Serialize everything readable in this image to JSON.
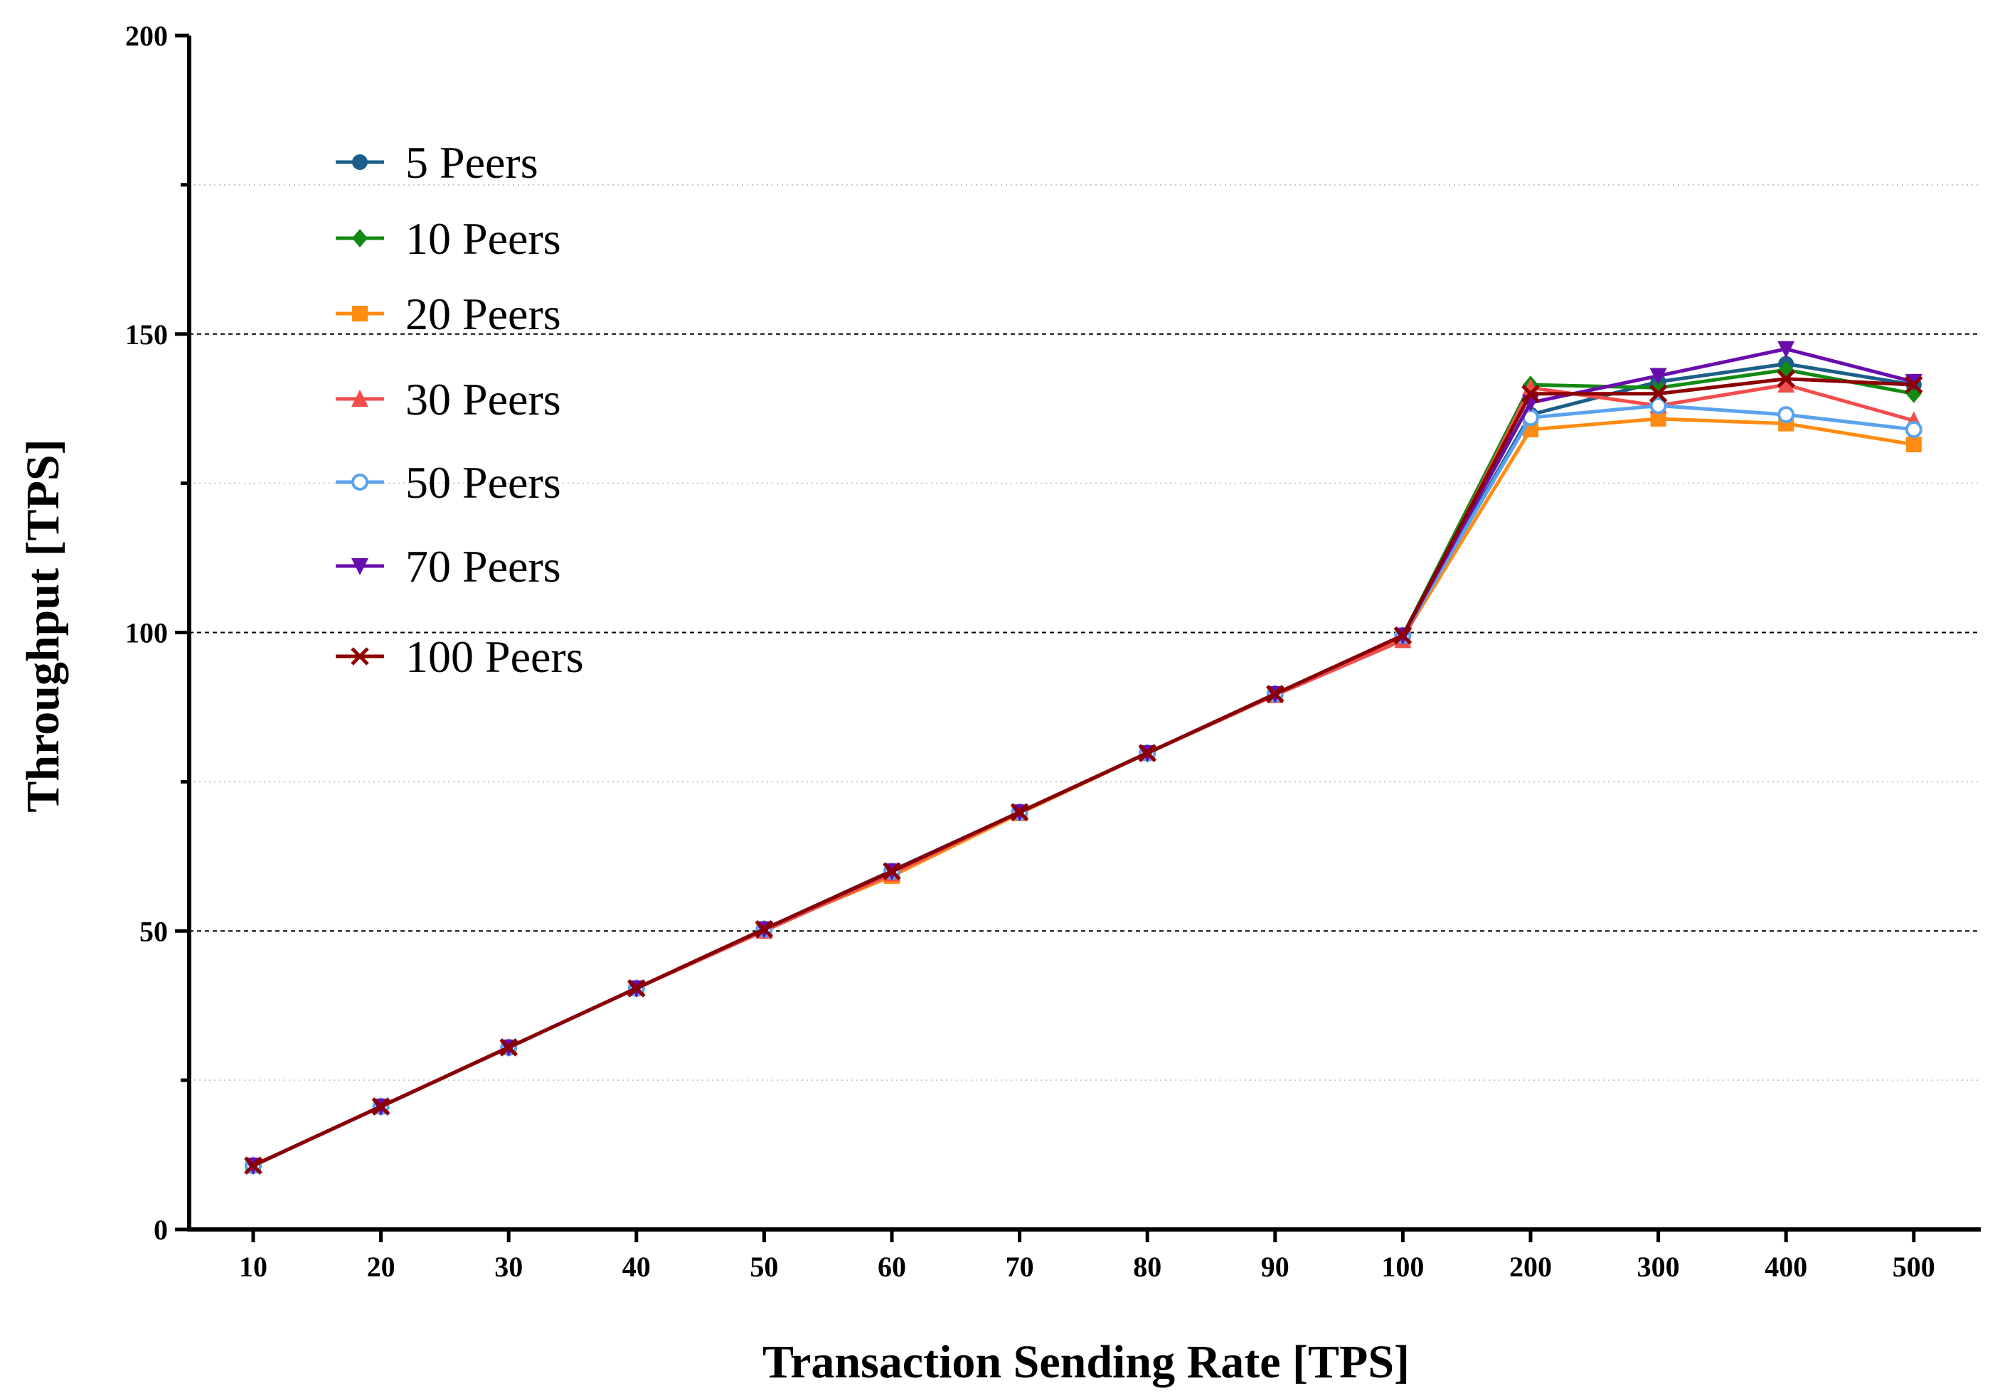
{
  "chart_data": {
    "type": "line",
    "title": "",
    "xlabel": "Transaction Sending Rate [TPS]",
    "ylabel": "Throughput [TPS]",
    "x_scale": "categorical",
    "categories": [
      "10",
      "20",
      "30",
      "40",
      "50",
      "60",
      "70",
      "80",
      "90",
      "100",
      "200",
      "300",
      "400",
      "500"
    ],
    "ylim": [
      0,
      200
    ],
    "yticks": [
      "0",
      "50",
      "100",
      "150",
      "200"
    ],
    "grid": "horizontal dashed at major ticks, dotted at minor ticks",
    "legend_position": "top-left",
    "series": [
      {
        "name": "5 Peers",
        "color": "#1b5e8a",
        "marker": "circle",
        "values": [
          10.7,
          20.6,
          30.5,
          40.4,
          50.3,
          60.1,
          69.9,
          79.8,
          89.7,
          99.5,
          136.5,
          142,
          145,
          141.5
        ]
      },
      {
        "name": "10 Peers",
        "color": "#138a13",
        "marker": "diamond",
        "values": [
          10.7,
          20.6,
          30.5,
          40.4,
          50.3,
          59.7,
          69.9,
          79.8,
          89.7,
          99.5,
          141.5,
          141,
          144,
          140
        ]
      },
      {
        "name": "20 Peers",
        "color": "#ff8c12",
        "marker": "square",
        "values": [
          10.7,
          20.6,
          30.5,
          40.4,
          50.3,
          59.2,
          69.7,
          79.8,
          89.5,
          99.2,
          134,
          135.8,
          135,
          131.5
        ]
      },
      {
        "name": "30 Peers",
        "color": "#f24d4d",
        "marker": "triangle-up",
        "values": [
          10.7,
          20.6,
          30.5,
          40.4,
          50.0,
          59.6,
          69.9,
          79.8,
          89.5,
          98.7,
          141,
          138,
          141.5,
          135.5
        ]
      },
      {
        "name": "50 Peers",
        "color": "#5aa2ec",
        "marker": "circle-open",
        "values": [
          10.7,
          20.6,
          30.5,
          40.4,
          50.3,
          60.0,
          69.9,
          79.8,
          89.7,
          99.5,
          136,
          138,
          136.5,
          134
        ]
      },
      {
        "name": "70 Peers",
        "color": "#6a0dad",
        "marker": "triangle-down",
        "values": [
          10.7,
          20.6,
          30.5,
          40.4,
          50.3,
          60.0,
          69.9,
          79.8,
          89.7,
          99.5,
          138.5,
          143,
          147.5,
          142
        ]
      },
      {
        "name": "100 Peers",
        "color": "#8b0000",
        "marker": "x",
        "values": [
          10.7,
          20.6,
          30.5,
          40.4,
          50.3,
          60.0,
          69.9,
          79.8,
          89.7,
          99.5,
          140,
          140,
          142.5,
          141.5
        ]
      }
    ]
  }
}
